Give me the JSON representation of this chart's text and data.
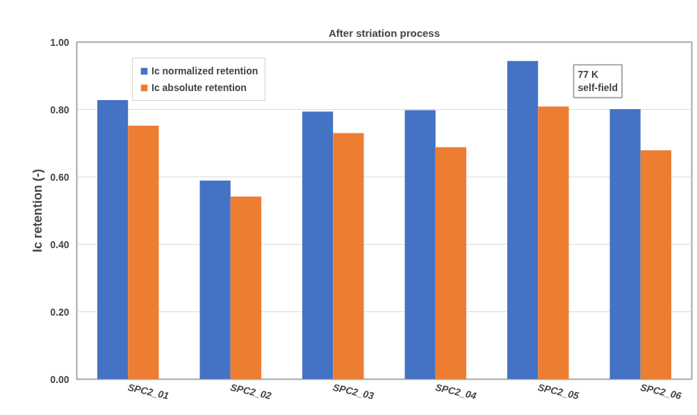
{
  "chart_data": {
    "type": "bar",
    "title": "After striation process",
    "ylabel": "Ic retention (-)",
    "categories": [
      "SPC2_01",
      "SPC2_02",
      "SPC2_03",
      "SPC2_04",
      "SPC2_05",
      "SPC2_06"
    ],
    "series": [
      {
        "name": "Ic normalized retention",
        "color": "#4472c4",
        "values": [
          0.828,
          0.589,
          0.794,
          0.798,
          0.944,
          0.801
        ]
      },
      {
        "name": "Ic absolute retention",
        "color": "#ed7d31",
        "values": [
          0.752,
          0.542,
          0.73,
          0.688,
          0.809,
          0.679
        ]
      }
    ],
    "ylim": [
      0,
      1
    ],
    "yticks": [
      {
        "value": 0,
        "label": "0.00"
      },
      {
        "value": 0.2,
        "label": "0.20"
      },
      {
        "value": 0.4,
        "label": "0.40"
      },
      {
        "value": 0.6,
        "label": "0.60"
      },
      {
        "value": 0.8,
        "label": "0.80"
      },
      {
        "value": 1,
        "label": "1.00"
      }
    ],
    "grid": "y",
    "legend": "top left",
    "annotations": [
      "77 K\nself-field"
    ]
  }
}
